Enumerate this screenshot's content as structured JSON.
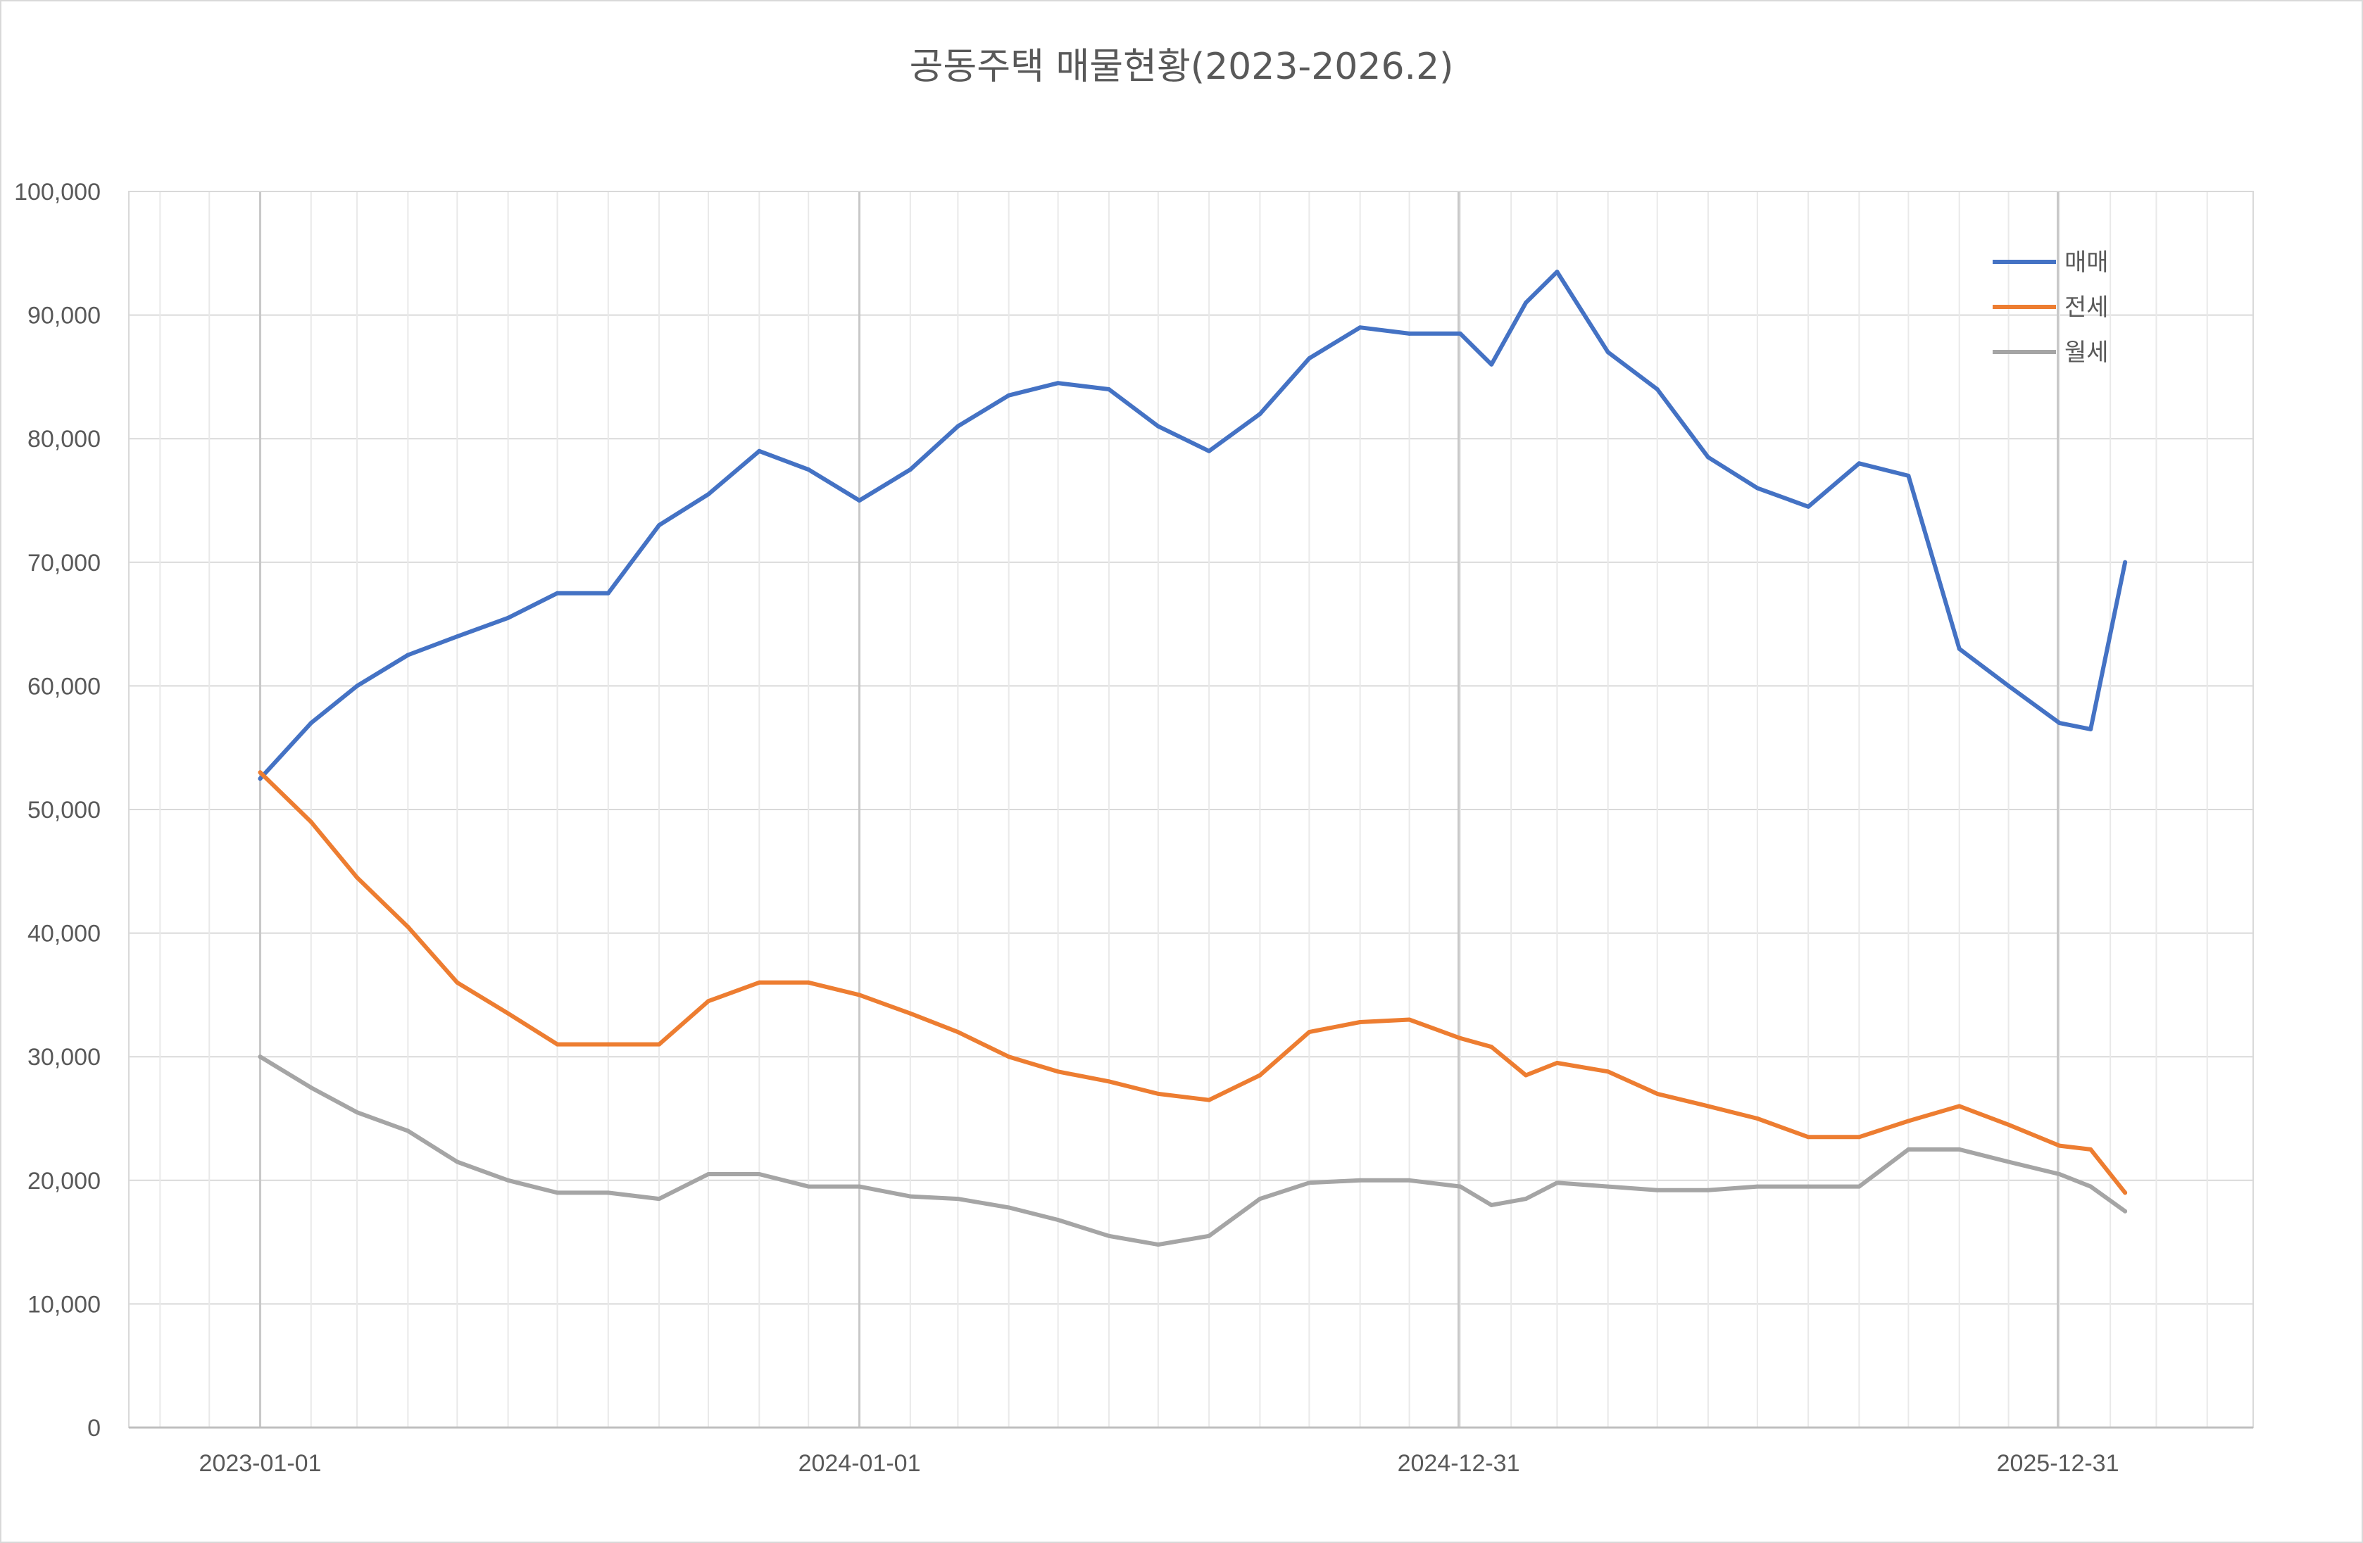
{
  "chart_data": {
    "type": "line",
    "title": "공동주택 매물현황(2023-2026.2)",
    "xlabel": "",
    "ylabel": "",
    "ylim": [
      0,
      100000
    ],
    "y_ticks": [
      "0",
      "10,000",
      "20,000",
      "30,000",
      "40,000",
      "50,000",
      "60,000",
      "70,000",
      "80,000",
      "90,000",
      "100,000"
    ],
    "y_tick_values": [
      0,
      10000,
      20000,
      30000,
      40000,
      50000,
      60000,
      70000,
      80000,
      90000,
      100000
    ],
    "x_range": [
      "2023-01-01",
      "2026-02-10"
    ],
    "x_ticks": [
      "2023-01-01",
      "2024-01-01",
      "2024-12-31",
      "2025-12-31"
    ],
    "grid": true,
    "legend_position": "top-right",
    "series": [
      {
        "name": "매매",
        "color": "#4472c4",
        "x": [
          "2023-01-01",
          "2023-02-01",
          "2023-03-01",
          "2023-04-01",
          "2023-05-01",
          "2023-06-01",
          "2023-07-01",
          "2023-08-01",
          "2023-09-01",
          "2023-10-01",
          "2023-11-01",
          "2023-12-01",
          "2024-01-01",
          "2024-02-01",
          "2024-03-01",
          "2024-04-01",
          "2024-05-01",
          "2024-06-01",
          "2024-07-01",
          "2024-08-01",
          "2024-09-01",
          "2024-10-01",
          "2024-11-01",
          "2024-12-01",
          "2025-01-01",
          "2025-01-20",
          "2025-02-10",
          "2025-03-01",
          "2025-04-01",
          "2025-05-01",
          "2025-06-01",
          "2025-07-01",
          "2025-08-01",
          "2025-09-01",
          "2025-10-01",
          "2025-11-01",
          "2025-12-01",
          "2026-01-01",
          "2026-01-20",
          "2026-02-10"
        ],
        "values": [
          52500,
          57000,
          60000,
          62500,
          64000,
          65500,
          67500,
          67500,
          73000,
          75500,
          79000,
          77500,
          75000,
          77500,
          81000,
          83500,
          84500,
          84000,
          81000,
          79000,
          82000,
          86500,
          89000,
          88500,
          88500,
          86000,
          91000,
          93500,
          87000,
          84000,
          78500,
          76000,
          74500,
          78000,
          77000,
          63000,
          60000,
          57000,
          56500,
          70000
        ]
      },
      {
        "name": "전세",
        "color": "#ed7d31",
        "x": [
          "2023-01-01",
          "2023-02-01",
          "2023-03-01",
          "2023-04-01",
          "2023-05-01",
          "2023-06-01",
          "2023-07-01",
          "2023-08-01",
          "2023-09-01",
          "2023-10-01",
          "2023-11-01",
          "2023-12-01",
          "2024-01-01",
          "2024-02-01",
          "2024-03-01",
          "2024-04-01",
          "2024-05-01",
          "2024-06-01",
          "2024-07-01",
          "2024-08-01",
          "2024-09-01",
          "2024-10-01",
          "2024-11-01",
          "2024-12-01",
          "2025-01-01",
          "2025-01-20",
          "2025-02-10",
          "2025-03-01",
          "2025-04-01",
          "2025-05-01",
          "2025-06-01",
          "2025-07-01",
          "2025-08-01",
          "2025-09-01",
          "2025-10-01",
          "2025-11-01",
          "2025-12-01",
          "2026-01-01",
          "2026-01-20",
          "2026-02-10"
        ],
        "values": [
          53000,
          49000,
          44500,
          40500,
          36000,
          33500,
          31000,
          31000,
          31000,
          34500,
          36000,
          36000,
          35000,
          33500,
          32000,
          30000,
          28800,
          28000,
          27000,
          26500,
          28500,
          32000,
          32800,
          33000,
          31500,
          30800,
          28500,
          29500,
          28800,
          27000,
          26000,
          25000,
          23500,
          23500,
          24800,
          26000,
          24500,
          22800,
          22500,
          19000
        ]
      },
      {
        "name": "월세",
        "color": "#a5a5a5",
        "x": [
          "2023-01-01",
          "2023-02-01",
          "2023-03-01",
          "2023-04-01",
          "2023-05-01",
          "2023-06-01",
          "2023-07-01",
          "2023-08-01",
          "2023-09-01",
          "2023-10-01",
          "2023-11-01",
          "2023-12-01",
          "2024-01-01",
          "2024-02-01",
          "2024-03-01",
          "2024-04-01",
          "2024-05-01",
          "2024-06-01",
          "2024-07-01",
          "2024-08-01",
          "2024-09-01",
          "2024-10-01",
          "2024-11-01",
          "2024-12-01",
          "2025-01-01",
          "2025-01-20",
          "2025-02-10",
          "2025-03-01",
          "2025-04-01",
          "2025-05-01",
          "2025-06-01",
          "2025-07-01",
          "2025-08-01",
          "2025-09-01",
          "2025-10-01",
          "2025-11-01",
          "2025-12-01",
          "2026-01-01",
          "2026-01-20",
          "2026-02-10"
        ],
        "values": [
          30000,
          27500,
          25500,
          24000,
          21500,
          20000,
          19000,
          19000,
          18500,
          20500,
          20500,
          19500,
          19500,
          18700,
          18500,
          17800,
          16800,
          15500,
          14800,
          15500,
          18500,
          19800,
          20000,
          20000,
          19500,
          18000,
          18500,
          19800,
          19500,
          19200,
          19200,
          19500,
          19500,
          19500,
          22500,
          22500,
          21500,
          20500,
          19500,
          17500
        ]
      }
    ]
  }
}
